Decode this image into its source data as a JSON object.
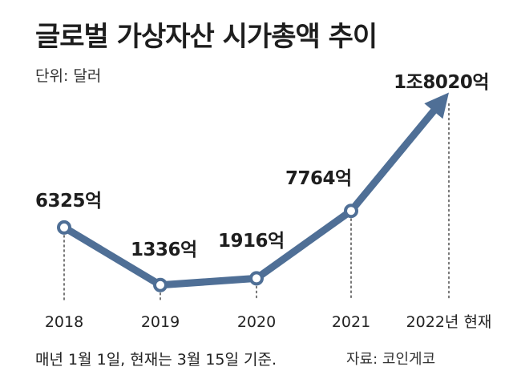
{
  "title": "글로벌 가상자산 시가총액 추이",
  "unit_label": "단위: 달러",
  "footnote": "매년 1월 1일, 현재는 3월 15일 기준.",
  "source": "자료: 코인게코",
  "colors": {
    "line": "#4f6f96",
    "text": "#222222",
    "dotted": "#555555"
  },
  "chart_data": {
    "type": "line",
    "categories": [
      "2018",
      "2019",
      "2020",
      "2021",
      "2022년 현재"
    ],
    "values": [
      6325,
      1336,
      1916,
      7764,
      18020
    ],
    "value_labels": [
      "6325억",
      "1336억",
      "1916억",
      "7764억",
      "1조8020억"
    ],
    "unit": "억 달러",
    "last_point_style": "arrow",
    "grid": false,
    "legend": "none"
  }
}
